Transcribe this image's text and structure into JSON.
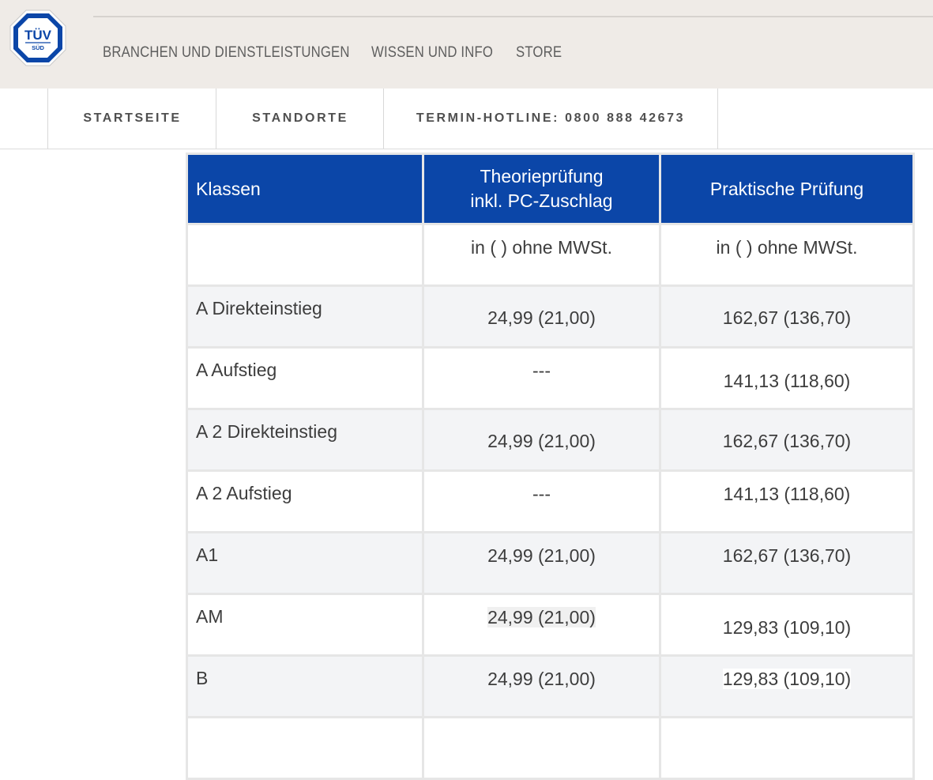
{
  "brand": {
    "logo_text_top": "TÜV",
    "logo_text_bottom": "SÜD",
    "colors": {
      "primary": "#0b46a8",
      "topbar_bg": "#efebe7"
    }
  },
  "mainnav": {
    "items": [
      {
        "label": "BRANCHEN UND DIENSTLEISTUNGEN"
      },
      {
        "label": "WISSEN UND INFO"
      },
      {
        "label": "STORE"
      }
    ]
  },
  "subnav": {
    "items": [
      {
        "label": "STARTSEITE"
      },
      {
        "label": "STANDORTE"
      },
      {
        "label": "TERMIN-HOTLINE: 0800 888 42673"
      }
    ]
  },
  "table": {
    "headers": {
      "klassen": "Klassen",
      "theorie_line1": "Theorieprüfung",
      "theorie_line2": "inkl. PC-Zuschlag",
      "praxis": "Praktische Prüfung"
    },
    "subheader": {
      "klassen": "",
      "theorie": "in ( ) ohne MWSt.",
      "praxis": "in ( ) ohne MWSt."
    },
    "rows": [
      {
        "klasse": "A Direkteinstieg",
        "theorie": "24,99 (21,00)",
        "praxis": "162,67 (136,70)"
      },
      {
        "klasse": "A Aufstieg",
        "theorie": "---",
        "praxis": "141,13 (118,60)"
      },
      {
        "klasse": "A 2 Direkteinstieg",
        "theorie": "24,99 (21,00)",
        "praxis": "162,67 (136,70)"
      },
      {
        "klasse": "A 2 Aufstieg",
        "theorie": "---",
        "praxis": "141,13 (118,60)"
      },
      {
        "klasse": "A1",
        "theorie": "24,99 (21,00)",
        "praxis": "162,67 (136,70)"
      },
      {
        "klasse": "AM",
        "theorie": "24,99 (21,00)",
        "praxis": "129,83 (109,10)"
      },
      {
        "klasse": "B",
        "theorie": "24,99 (21,00)",
        "praxis": "129,83 (109,10)"
      }
    ]
  }
}
